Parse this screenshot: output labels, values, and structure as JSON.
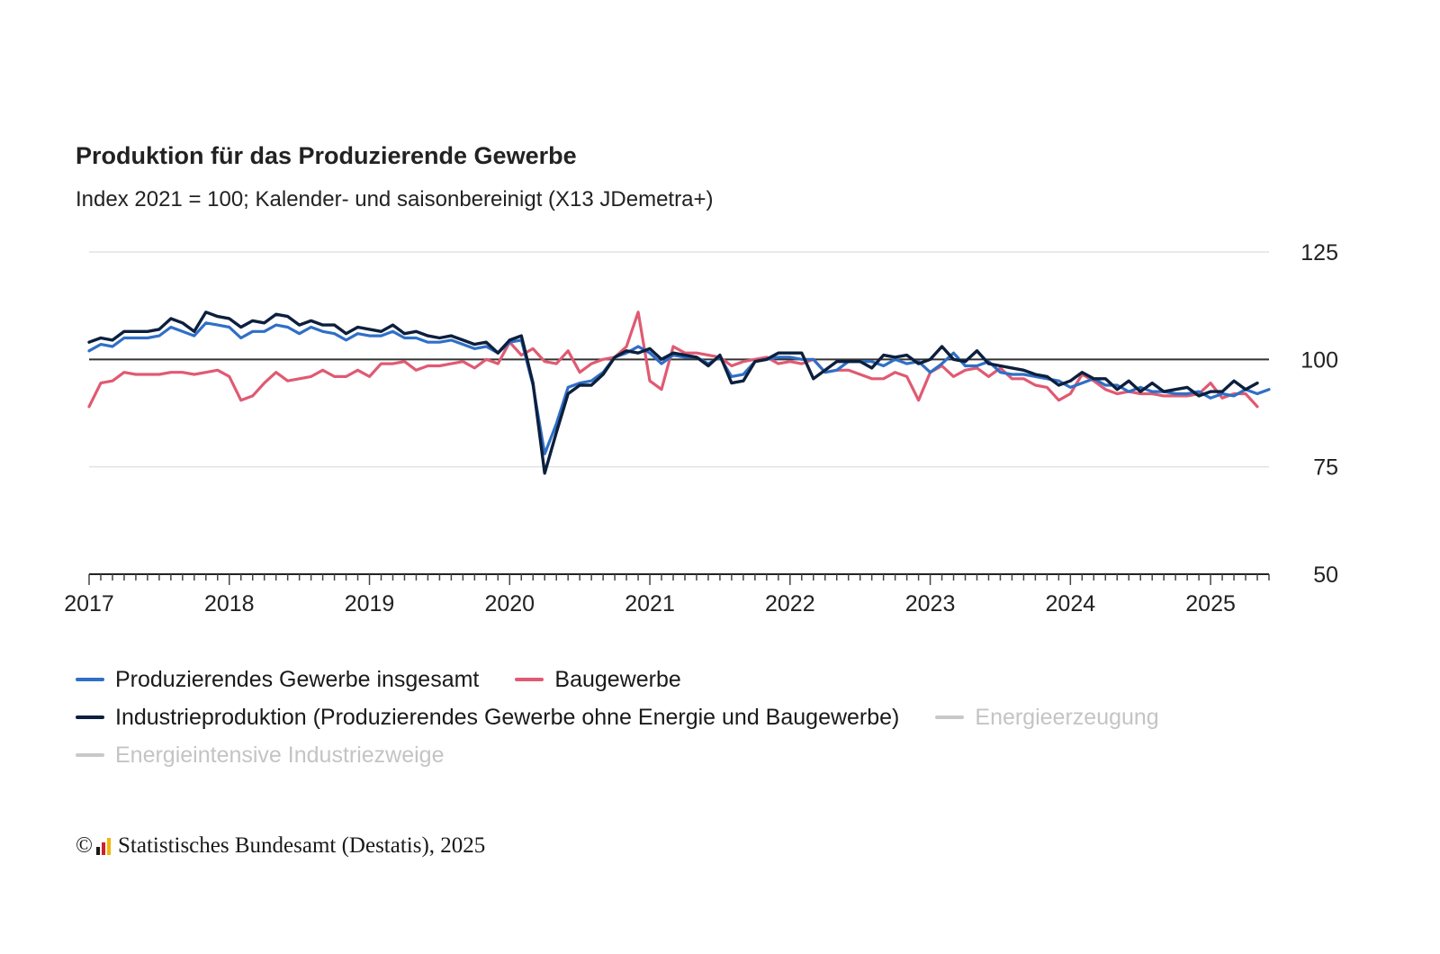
{
  "title": "Produktion für das Produzierende Gewerbe",
  "subtitle": "Index 2021 = 100; Kalender- und saisonbereinigt (X13 JDemetra+)",
  "footer": {
    "copyright_symbol": "©",
    "text": "Statistisches Bundesamt (Destatis), 2025"
  },
  "colors": {
    "total": "#2f6fc6",
    "construction": "#e05a72",
    "industry": "#0c1f3d",
    "inactive": "#c8c8c8",
    "grid": "#e2e2e2",
    "baseline": "#333333"
  },
  "legend": [
    {
      "label": "Produzierendes Gewerbe insgesamt",
      "color": "#2f6fc6",
      "active": true
    },
    {
      "label": "Baugewerbe",
      "color": "#e05a72",
      "active": true
    },
    {
      "label": "Industrieproduktion (Produzierendes Gewerbe ohne Energie und Baugewerbe)",
      "color": "#0c1f3d",
      "active": true
    },
    {
      "label": "Energieerzeugung",
      "color": "#c8c8c8",
      "active": false
    },
    {
      "label": "Energieintensive Industriezweige",
      "color": "#c8c8c8",
      "active": false
    }
  ],
  "chart_data": {
    "type": "line",
    "title": "Produktion für das Produzierende Gewerbe",
    "subtitle": "Index 2021 = 100; Kalender- und saisonbereinigt (X13 JDemetra+)",
    "x_start": "2017-01",
    "x_end": "2025-05",
    "x_ticks": [
      "2017",
      "2018",
      "2019",
      "2020",
      "2021",
      "2022",
      "2023",
      "2024",
      "2025"
    ],
    "y_ticks": [
      50,
      75,
      100,
      125
    ],
    "ylim": [
      50,
      125
    ],
    "reference_line": 100,
    "grid": true,
    "legend_position": "bottom",
    "series": [
      {
        "name": "Produzierendes Gewerbe insgesamt",
        "color": "#2f6fc6",
        "values": [
          102,
          103.5,
          103,
          105,
          105,
          105,
          105.5,
          107.5,
          106.5,
          105.5,
          108.5,
          108,
          107.5,
          105,
          106.5,
          106.5,
          108,
          107.5,
          106,
          107.5,
          106.5,
          106,
          104.5,
          106,
          105.5,
          105.5,
          106.5,
          105,
          105,
          104,
          104,
          104.5,
          103.5,
          102.5,
          103,
          101.5,
          104,
          104.5,
          94,
          78,
          85,
          93.5,
          94.5,
          95,
          97,
          100.5,
          101.5,
          103,
          101.5,
          99,
          101,
          100.5,
          100.5,
          99,
          100.5,
          96,
          96.5,
          99.5,
          100,
          100.5,
          100.5,
          100,
          100,
          97,
          97.5,
          99.5,
          99.5,
          99.5,
          98.5,
          100,
          99,
          99.5,
          97,
          99,
          101.5,
          98.5,
          98.5,
          99.5,
          97,
          96.5,
          96.5,
          96,
          95.5,
          95,
          93.5,
          94.5,
          95.5,
          94,
          94,
          92.5,
          93.5,
          92.5,
          92.5,
          92,
          92,
          92.5,
          91,
          92,
          91.5,
          93,
          92,
          93
        ]
      },
      {
        "name": "Baugewerbe",
        "color": "#e05a72",
        "values": [
          89,
          94.5,
          95,
          97,
          96.5,
          96.5,
          96.5,
          97,
          97,
          96.5,
          97,
          97.5,
          96,
          90.5,
          91.5,
          94.5,
          97,
          95,
          95.5,
          96,
          97.5,
          96,
          96,
          97.5,
          96,
          99,
          99,
          99.5,
          97.5,
          98.5,
          98.5,
          99,
          99.5,
          98,
          100,
          99,
          104,
          101,
          102.5,
          99.5,
          99,
          102,
          97,
          99,
          100,
          100.5,
          103,
          111,
          95,
          93,
          103,
          101.5,
          101.5,
          101,
          100.5,
          98.5,
          99.5,
          100,
          100.5,
          99,
          99.5,
          99,
          100,
          97,
          97.5,
          97.5,
          96.5,
          95.5,
          95.5,
          97,
          96,
          90.5,
          97,
          98.5,
          96,
          97.5,
          98,
          96,
          98,
          95.5,
          95.5,
          94,
          93.5,
          90.5,
          92,
          96.5,
          95,
          93,
          92,
          92.5,
          92,
          92,
          91.5,
          91.5,
          91.5,
          92,
          94.5,
          91,
          92,
          92,
          89
        ]
      },
      {
        "name": "Industrieproduktion (Produzierendes Gewerbe ohne Energie und Baugewerbe)",
        "color": "#0c1f3d",
        "values": [
          104,
          105,
          104.5,
          106.5,
          106.5,
          106.5,
          107,
          109.5,
          108.5,
          106.5,
          111,
          110,
          109.5,
          107.5,
          109,
          108.5,
          110.5,
          110,
          108,
          109,
          108,
          108,
          106,
          107.5,
          107,
          106.5,
          108,
          106,
          106.5,
          105.5,
          105,
          105.5,
          104.5,
          103.5,
          104,
          101.5,
          104.5,
          105.5,
          94.5,
          73.5,
          83,
          92,
          94,
          94,
          96.5,
          100.5,
          102,
          101.5,
          102.5,
          100,
          101.5,
          101,
          100.5,
          98.5,
          101,
          94.5,
          95,
          99.5,
          100,
          101.5,
          101.5,
          101.5,
          95.5,
          97.5,
          99.5,
          99.5,
          99.5,
          98,
          101,
          100.5,
          101,
          99,
          100,
          103,
          100,
          99.5,
          102,
          99,
          98.5,
          98,
          97.5,
          96.5,
          96,
          94,
          95,
          97,
          95.5,
          95.5,
          93,
          95,
          92.5,
          94.5,
          92.5,
          93,
          93.5,
          91.5,
          92.5,
          92.5,
          95,
          93,
          94.5
        ]
      }
    ]
  }
}
